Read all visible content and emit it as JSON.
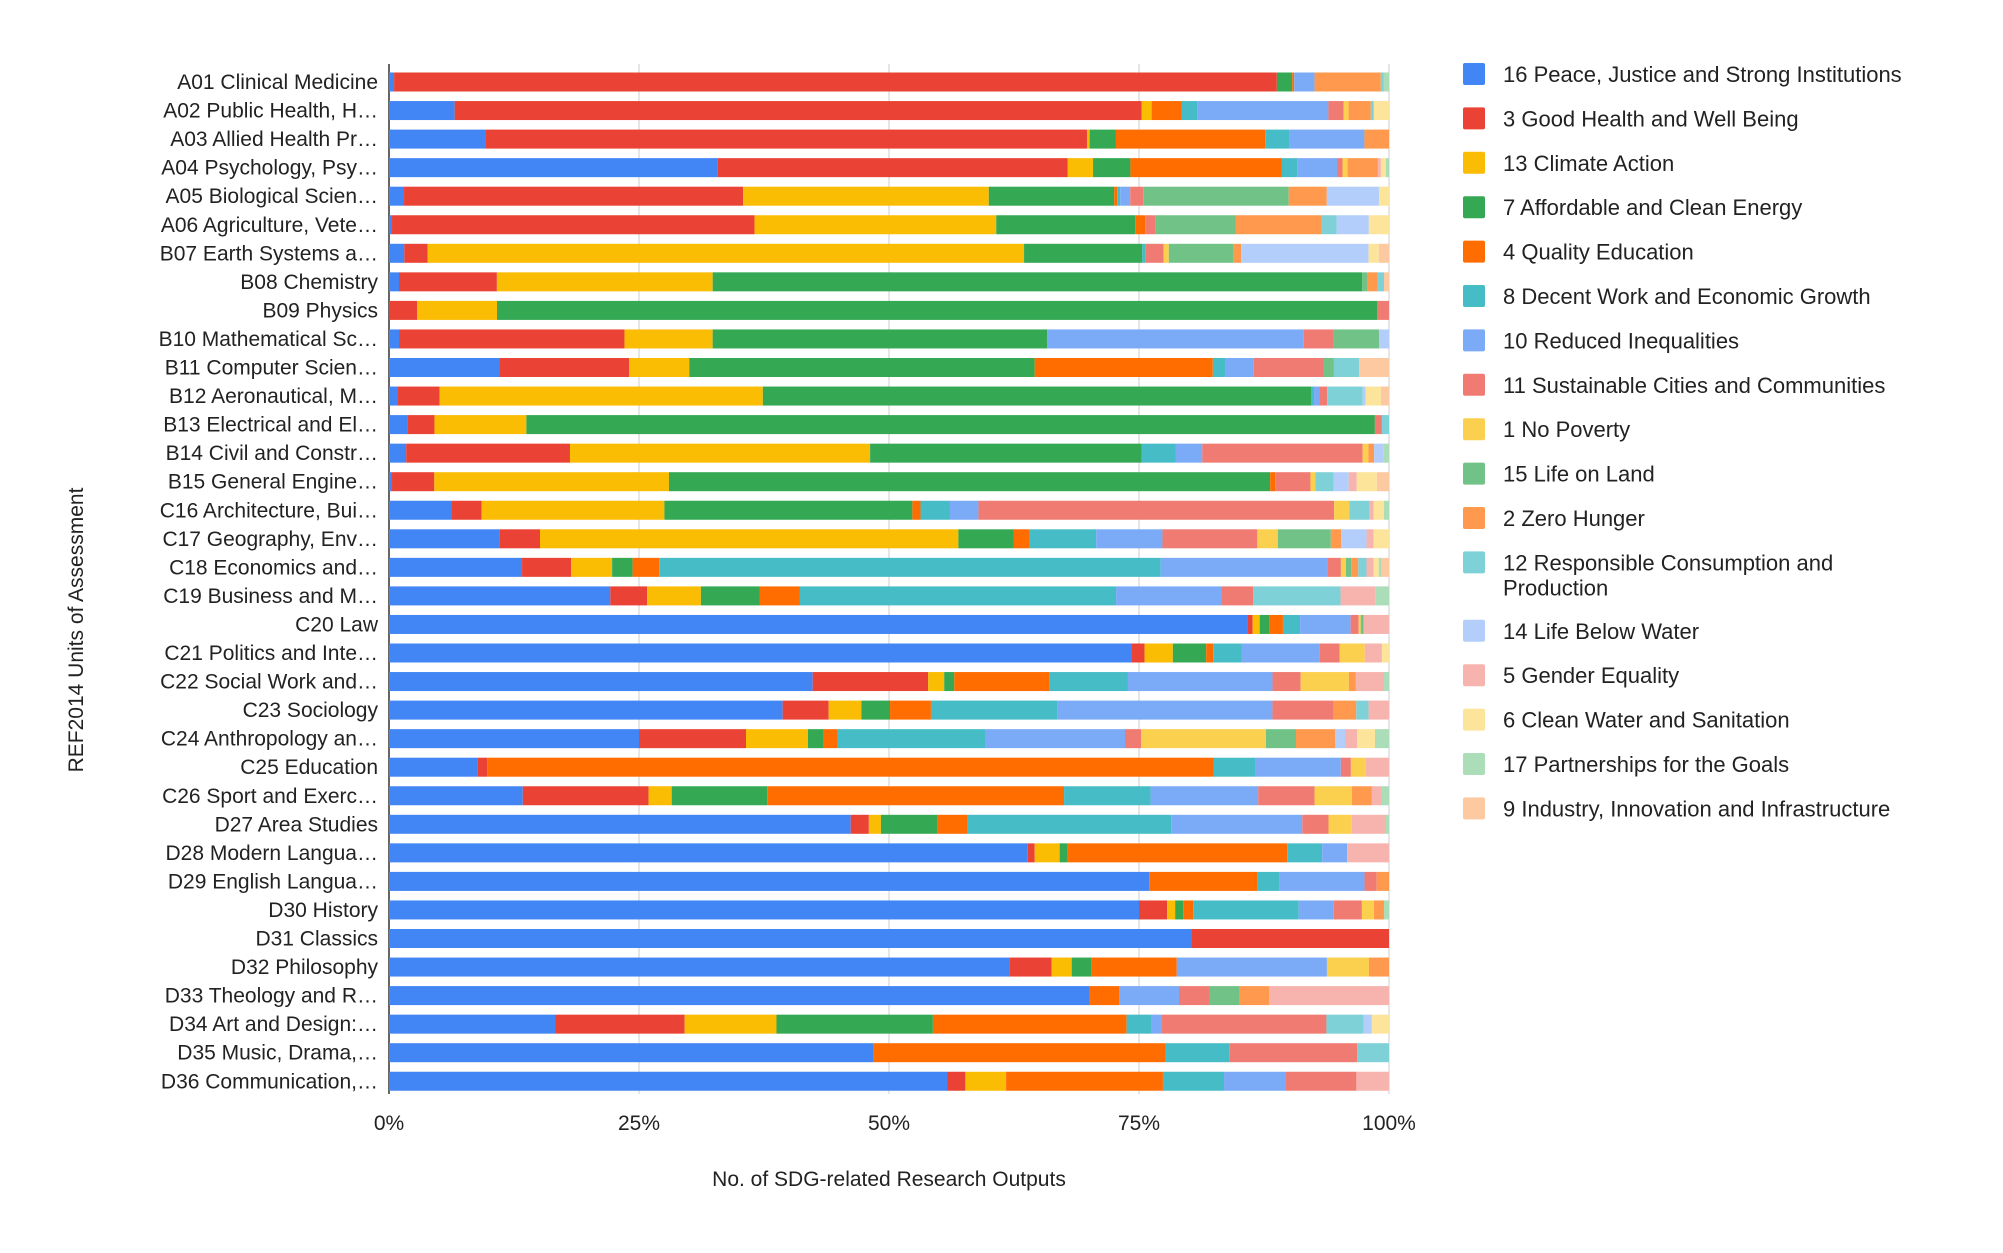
{
  "chart_data": {
    "type": "bar",
    "orientation": "horizontal",
    "stacked": "percent",
    "xlabel": "No. of SDG-related Research Outputs",
    "ylabel": "REF2014 Units of Assessment",
    "xlim": [
      0,
      100
    ],
    "x_ticks": [
      "0%",
      "25%",
      "50%",
      "75%",
      "100%"
    ],
    "grid": true,
    "legend_position": "right",
    "categories": [
      "A01 Clinical Medicine",
      "A02 Public Health, H…",
      "A03 Allied Health Pr…",
      "A04 Psychology, Psy…",
      "A05 Biological Scien…",
      "A06 Agriculture, Vete…",
      "B07 Earth Systems a…",
      "B08 Chemistry",
      "B09 Physics",
      "B10 Mathematical Sc…",
      "B11 Computer Scien…",
      "B12 Aeronautical, M…",
      "B13 Electrical and El…",
      "B14 Civil and Constr…",
      "B15 General Engine…",
      "C16 Architecture, Bui…",
      "C17 Geography, Env…",
      "C18 Economics and…",
      "C19 Business and M…",
      "C20 Law",
      "C21 Politics and Inte…",
      "C22 Social Work and…",
      "C23 Sociology",
      "C24 Anthropology an…",
      "C25 Education",
      "C26 Sport and Exerc…",
      "D27 Area Studies",
      "D28 Modern Langua…",
      "D29 English Langua…",
      "D30 History",
      "D31 Classics",
      "D32 Philosophy",
      "D33 Theology and R…",
      "D34 Art and Design:…",
      "D35 Music, Drama,…",
      "D36 Communication,…"
    ],
    "series": [
      {
        "name": "16 Peace, Justice and Strong Institutions",
        "color": "#4285F4",
        "values": [
          0.5,
          6.5,
          11,
          32.5,
          1.5,
          0.3,
          1.5,
          1,
          0,
          1,
          11,
          0.8,
          1.8,
          1.5,
          0.3,
          6.2,
          10.8,
          13,
          21,
          85,
          73.5,
          42.2,
          38.5,
          25,
          8.8,
          13.3,
          45.8,
          64,
          74.5,
          74.7,
          80.3,
          62,
          70,
          16.5,
          48.5,
          54.8
        ]
      },
      {
        "name": "3 Good Health and Well Being",
        "color": "#EA4335",
        "values": [
          86.6,
          68,
          68.5,
          34.7,
          33.8,
          36,
          2.3,
          9.8,
          2.8,
          22.5,
          13,
          4.2,
          2.7,
          14.3,
          4.2,
          2.9,
          4,
          4.8,
          3.5,
          0.5,
          1.3,
          11.5,
          4.5,
          10.7,
          1,
          12.5,
          1.8,
          0.7,
          0,
          2.8,
          19.7,
          4.2,
          0,
          12.8,
          0,
          1.8
        ]
      },
      {
        "name": "13 Climate Action",
        "color": "#FBBC04",
        "values": [
          0,
          1,
          0.3,
          2.5,
          24.5,
          24,
          58.5,
          21.6,
          8,
          8.8,
          6,
          31.9,
          9.1,
          26.2,
          23.3,
          18,
          41,
          4,
          5.1,
          0.7,
          2.8,
          1.6,
          3.2,
          6.2,
          0,
          2.3,
          1.2,
          2.5,
          0,
          0.8,
          0,
          2,
          0,
          9.1,
          0,
          4
        ]
      },
      {
        "name": "7 Affordable and Clean Energy",
        "color": "#34A853",
        "values": [
          1.5,
          0,
          3,
          3.7,
          12.5,
          13.8,
          11.6,
          65,
          88,
          33.4,
          34.5,
          54.1,
          84,
          23.7,
          59.7,
          24.4,
          5.4,
          2,
          5.6,
          1,
          3.3,
          1,
          2.8,
          1.5,
          0,
          9.5,
          5.6,
          0.8,
          0,
          0.8,
          0,
          2,
          0,
          15.5,
          0,
          0
        ]
      },
      {
        "name": "4 Quality Education",
        "color": "#FF6D01",
        "values": [
          0.2,
          3,
          17,
          15,
          0.3,
          1,
          0,
          0,
          0,
          0,
          17.8,
          0,
          0,
          0,
          0.5,
          0.8,
          1.6,
          2.6,
          3.8,
          1.3,
          0.7,
          9.5,
          4,
          1.4,
          72.4,
          29.5,
          3,
          22,
          10.6,
          1,
          0,
          8.5,
          3,
          19.2,
          29.3,
          15.4
        ]
      },
      {
        "name": "8 Decent Work and Economic Growth",
        "color": "#46BDC6",
        "values": [
          0,
          1.5,
          2.8,
          1.5,
          0.3,
          0,
          0.3,
          0,
          0,
          0,
          1.3,
          0.3,
          0,
          3,
          0,
          2.9,
          6.5,
          49,
          30,
          1.7,
          2.8,
          7.8,
          12.4,
          14.8,
          4.2,
          8.6,
          20.2,
          3.5,
          2.2,
          10.5,
          0,
          0,
          0,
          2.5,
          6.4,
          6
        ]
      },
      {
        "name": "10 Reduced Inequalities",
        "color": "#7BAAF7",
        "values": [
          2,
          13,
          8.5,
          4,
          1,
          0,
          0,
          0,
          0,
          25.6,
          2.8,
          0.5,
          0,
          2.3,
          0,
          2.8,
          6.5,
          16.3,
          10,
          5,
          7.7,
          14.4,
          21,
          14,
          8.5,
          10.7,
          13,
          2.5,
          8.3,
          3.5,
          0,
          15,
          6,
          1,
          0,
          6
        ]
      },
      {
        "name": "11 Sustainable Cities and Communities",
        "color": "#F07B72",
        "values": [
          0,
          1.5,
          0,
          0.5,
          1.3,
          1,
          1.8,
          0,
          1.2,
          3,
          7,
          0.8,
          0.7,
          14,
          3.5,
          35,
          9.3,
          1.3,
          3,
          0.8,
          2,
          2.8,
          6,
          1.6,
          1,
          5.6,
          2.6,
          0,
          1.2,
          2.8,
          0,
          0,
          3,
          16.3,
          12.8,
          7
        ]
      },
      {
        "name": "1 No Poverty",
        "color": "#FCD04F",
        "values": [
          0,
          0.5,
          0,
          0.5,
          0,
          0,
          0.5,
          0,
          0,
          0,
          0,
          0,
          0,
          0.5,
          0.5,
          1.5,
          2,
          0.5,
          0,
          0.2,
          2.5,
          4.8,
          0,
          12.5,
          1.5,
          3.7,
          2.3,
          0,
          0,
          1.2,
          0,
          4.2,
          0,
          0,
          0,
          0
        ]
      },
      {
        "name": "15 Life on Land",
        "color": "#71C287",
        "values": [
          0,
          0,
          0,
          0,
          14.5,
          8,
          6.3,
          0.5,
          0,
          4.5,
          1,
          0,
          0,
          0,
          0,
          0,
          5.2,
          0.5,
          0,
          0.3,
          0,
          0,
          0,
          3,
          0,
          0,
          0,
          0,
          0,
          0,
          0,
          0,
          3,
          0,
          0,
          0
        ]
      },
      {
        "name": "2 Zero Hunger",
        "color": "#FF994D",
        "values": [
          6.5,
          2.2,
          2.8,
          3,
          3.8,
          8.5,
          0.8,
          1,
          0,
          0,
          0,
          0,
          0,
          0.5,
          0,
          0,
          1,
          0.7,
          0,
          0,
          0,
          0.7,
          2.2,
          3.9,
          0,
          2,
          0,
          0,
          1.2,
          1,
          0,
          2,
          3,
          0,
          0,
          0
        ]
      },
      {
        "name": "12 Responsible Consumption and Production",
        "color": "#7ED1D7",
        "values": [
          0.3,
          0.3,
          0,
          0,
          0,
          1.5,
          0,
          0.7,
          0,
          0,
          2.5,
          3.5,
          0.7,
          0,
          1.8,
          2,
          0,
          0.8,
          8.3,
          0,
          0,
          0,
          1.2,
          0,
          0,
          0,
          0,
          0,
          0,
          0,
          0,
          0,
          0,
          3.7,
          3.2,
          0
        ]
      },
      {
        "name": "14 Life Below Water",
        "color": "#B3CEFB",
        "values": [
          0,
          0,
          0,
          0,
          5.2,
          3.2,
          12.5,
          0,
          0,
          1,
          0,
          0.3,
          0,
          0.8,
          1.5,
          0,
          2.5,
          0,
          0,
          0,
          0,
          0,
          0,
          1,
          0,
          0,
          0,
          0,
          0,
          0,
          0,
          0,
          0,
          0.8,
          0,
          0
        ]
      },
      {
        "name": "5 Gender Equality",
        "color": "#F7B4AE",
        "values": [
          0,
          0,
          0,
          0.3,
          0,
          0,
          0,
          0,
          0,
          0,
          0,
          0,
          0,
          0,
          0.8,
          0.4,
          0.7,
          0.7,
          3.3,
          2.5,
          1.7,
          2.8,
          2,
          1.2,
          2.3,
          1,
          3.4,
          4.2,
          0,
          0,
          0,
          0,
          12,
          0,
          0,
          3.2
        ]
      },
      {
        "name": "6 Clean Water and Sanitation",
        "color": "#FDE49B",
        "values": [
          0,
          1.5,
          0,
          0.5,
          1,
          2,
          1,
          0,
          0,
          0,
          0,
          1.5,
          0,
          0,
          2,
          1,
          1.5,
          0.5,
          0,
          0,
          0.7,
          0,
          0,
          1.8,
          0,
          0,
          0,
          0,
          0,
          0,
          0,
          0,
          0,
          1.7,
          0,
          0
        ]
      },
      {
        "name": "17 Partnerships for the Goals",
        "color": "#AADDB8",
        "values": [
          0.5,
          0,
          0,
          0.3,
          0,
          0,
          0,
          0,
          0,
          0,
          0,
          0,
          0,
          0.5,
          0,
          0.5,
          0,
          0.3,
          1.3,
          0,
          0,
          0.5,
          0,
          1.4,
          0,
          0.7,
          0.3,
          0,
          0,
          0.5,
          0,
          0,
          0,
          0,
          0,
          0
        ]
      },
      {
        "name": "9 Industry, Innovation and Infrastructure",
        "color": "#FDC9A0",
        "values": [
          0,
          0,
          0,
          0,
          0,
          0,
          1,
          0.5,
          0,
          0,
          3,
          0.8,
          0,
          0,
          1.2,
          0,
          0,
          0.7,
          0,
          0,
          0,
          0,
          0,
          0,
          0,
          0,
          0,
          0,
          0,
          0,
          0,
          0,
          0,
          0,
          0,
          0
        ]
      }
    ]
  }
}
